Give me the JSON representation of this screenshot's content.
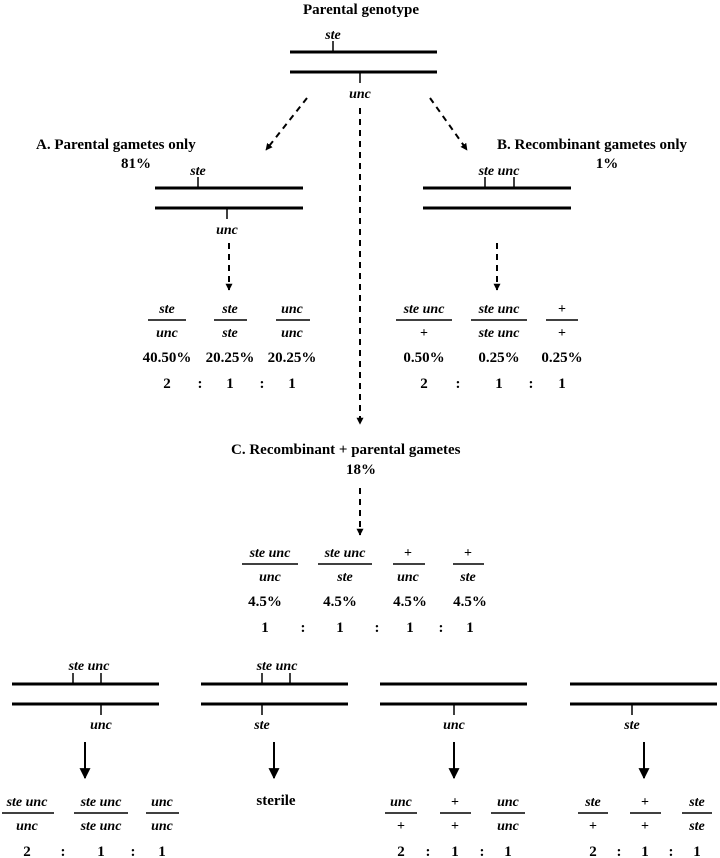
{
  "title": "Parental genotype",
  "alleles": {
    "ste": "ste",
    "unc": "unc",
    "ste_unc": "ste unc",
    "plus": "+"
  },
  "sections": {
    "A": {
      "label": "A.  Parental gametes only",
      "percent": "81%"
    },
    "B": {
      "label": "B.  Recombinant gametes only",
      "percent": "1%"
    },
    "C": {
      "label": "C.  Recombinant + parental gametes",
      "percent": "18%"
    }
  },
  "genotypes_A": [
    {
      "top": "ste",
      "bottom": "unc",
      "pct": "40.50%",
      "ratio": "2"
    },
    {
      "top": "ste",
      "bottom": "ste",
      "pct": "20.25%",
      "ratio": "1"
    },
    {
      "top": "unc",
      "bottom": "unc",
      "pct": "20.25%",
      "ratio": "1"
    }
  ],
  "genotypes_B": [
    {
      "top": "ste unc",
      "bottom": "+",
      "pct": "0.50%",
      "ratio": "2"
    },
    {
      "top": "ste unc",
      "bottom": "ste unc",
      "pct": "0.25%",
      "ratio": "1"
    },
    {
      "top": "+",
      "bottom": "+",
      "pct": "0.25%",
      "ratio": "1"
    }
  ],
  "genotypes_C": [
    {
      "top": "ste unc",
      "bottom": "unc",
      "pct": "4.5%",
      "ratio": "1"
    },
    {
      "top": "ste unc",
      "bottom": "ste",
      "pct": "4.5%",
      "ratio": "1"
    },
    {
      "top": "+",
      "bottom": "unc",
      "pct": "4.5%",
      "ratio": "1"
    },
    {
      "top": "+",
      "bottom": "ste",
      "pct": "4.5%",
      "ratio": "1"
    }
  ],
  "ratio_sep": ":",
  "sterile_label": "sterile",
  "bottom_groups": [
    {
      "genotypes": [
        {
          "top": "ste unc",
          "bottom": "unc",
          "ratio": "2"
        },
        {
          "top": "ste unc",
          "bottom": "ste unc",
          "ratio": "1"
        },
        {
          "top": "unc",
          "bottom": "unc",
          "ratio": "1"
        }
      ]
    },
    {
      "genotypes": []
    },
    {
      "genotypes": [
        {
          "top": "unc",
          "bottom": "+",
          "ratio": "2"
        },
        {
          "top": "+",
          "bottom": "+",
          "ratio": "1"
        },
        {
          "top": "unc",
          "bottom": "unc",
          "ratio": "1"
        }
      ]
    },
    {
      "genotypes": [
        {
          "top": "ste",
          "bottom": "+",
          "ratio": "2"
        },
        {
          "top": "+",
          "bottom": "+",
          "ratio": "1"
        },
        {
          "top": "ste",
          "bottom": "ste",
          "ratio": "1"
        }
      ]
    }
  ]
}
